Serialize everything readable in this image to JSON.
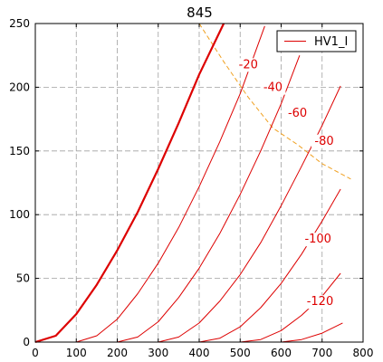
{
  "chart_data": {
    "type": "line",
    "title": "845",
    "xlabel": "",
    "ylabel": "",
    "xlim": [
      0,
      800
    ],
    "ylim": [
      0,
      250
    ],
    "x_ticks": [
      "0",
      "100",
      "200",
      "300",
      "400",
      "500",
      "600",
      "700",
      "800"
    ],
    "y_ticks": [
      "0",
      "50",
      "100",
      "150",
      "200",
      "250"
    ],
    "grid": true,
    "legend": {
      "placement": "top-right",
      "entries": [
        "HV1_I"
      ]
    },
    "colors": {
      "curves": "#dd0000",
      "load_line": "#f0a020",
      "grid": "#a0a0a0"
    },
    "series": [
      {
        "name": "HV1_I",
        "grid_voltage": "0",
        "bold": true,
        "points": [
          [
            0,
            0
          ],
          [
            50,
            5
          ],
          [
            100,
            22
          ],
          [
            150,
            45
          ],
          [
            200,
            72
          ],
          [
            250,
            102
          ],
          [
            300,
            136
          ],
          [
            350,
            172
          ],
          [
            400,
            210
          ],
          [
            460,
            250
          ]
        ]
      },
      {
        "grid_voltage": "-20",
        "points": [
          [
            100,
            0
          ],
          [
            150,
            5
          ],
          [
            200,
            18
          ],
          [
            250,
            38
          ],
          [
            300,
            62
          ],
          [
            350,
            90
          ],
          [
            400,
            122
          ],
          [
            450,
            157
          ],
          [
            500,
            195
          ],
          [
            560,
            248
          ]
        ]
      },
      {
        "grid_voltage": "-40",
        "points": [
          [
            200,
            0
          ],
          [
            250,
            4
          ],
          [
            300,
            16
          ],
          [
            350,
            35
          ],
          [
            400,
            58
          ],
          [
            450,
            85
          ],
          [
            500,
            116
          ],
          [
            550,
            150
          ],
          [
            600,
            187
          ],
          [
            645,
            225
          ]
        ]
      },
      {
        "grid_voltage": "-60",
        "points": [
          [
            300,
            0
          ],
          [
            350,
            4
          ],
          [
            400,
            15
          ],
          [
            450,
            32
          ],
          [
            500,
            53
          ],
          [
            550,
            78
          ],
          [
            600,
            107
          ],
          [
            650,
            138
          ],
          [
            700,
            170
          ],
          [
            745,
            201
          ]
        ]
      },
      {
        "grid_voltage": "-80",
        "points": [
          [
            400,
            0
          ],
          [
            450,
            3
          ],
          [
            500,
            12
          ],
          [
            550,
            27
          ],
          [
            600,
            46
          ],
          [
            650,
            69
          ],
          [
            700,
            95
          ],
          [
            745,
            120
          ]
        ]
      },
      {
        "grid_voltage": "-100",
        "points": [
          [
            500,
            0
          ],
          [
            550,
            2
          ],
          [
            600,
            9
          ],
          [
            650,
            21
          ],
          [
            700,
            36
          ],
          [
            745,
            54
          ]
        ]
      },
      {
        "grid_voltage": "-120",
        "points": [
          [
            600,
            0
          ],
          [
            650,
            2
          ],
          [
            700,
            7
          ],
          [
            750,
            15
          ]
        ]
      }
    ],
    "load_line": {
      "points": [
        [
          400,
          250
        ],
        [
          460,
          220
        ],
        [
          520,
          192
        ],
        [
          580,
          168
        ],
        [
          640,
          155
        ],
        [
          700,
          140
        ],
        [
          770,
          128
        ]
      ]
    },
    "curve_labels": [
      {
        "text": "-20",
        "x": 520,
        "y": 215
      },
      {
        "text": "-40",
        "x": 580,
        "y": 197
      },
      {
        "text": "-60",
        "x": 640,
        "y": 177
      },
      {
        "text": "-80",
        "x": 705,
        "y": 155
      },
      {
        "text": "-100",
        "x": 690,
        "y": 78
      },
      {
        "text": "-120",
        "x": 695,
        "y": 29
      }
    ]
  }
}
